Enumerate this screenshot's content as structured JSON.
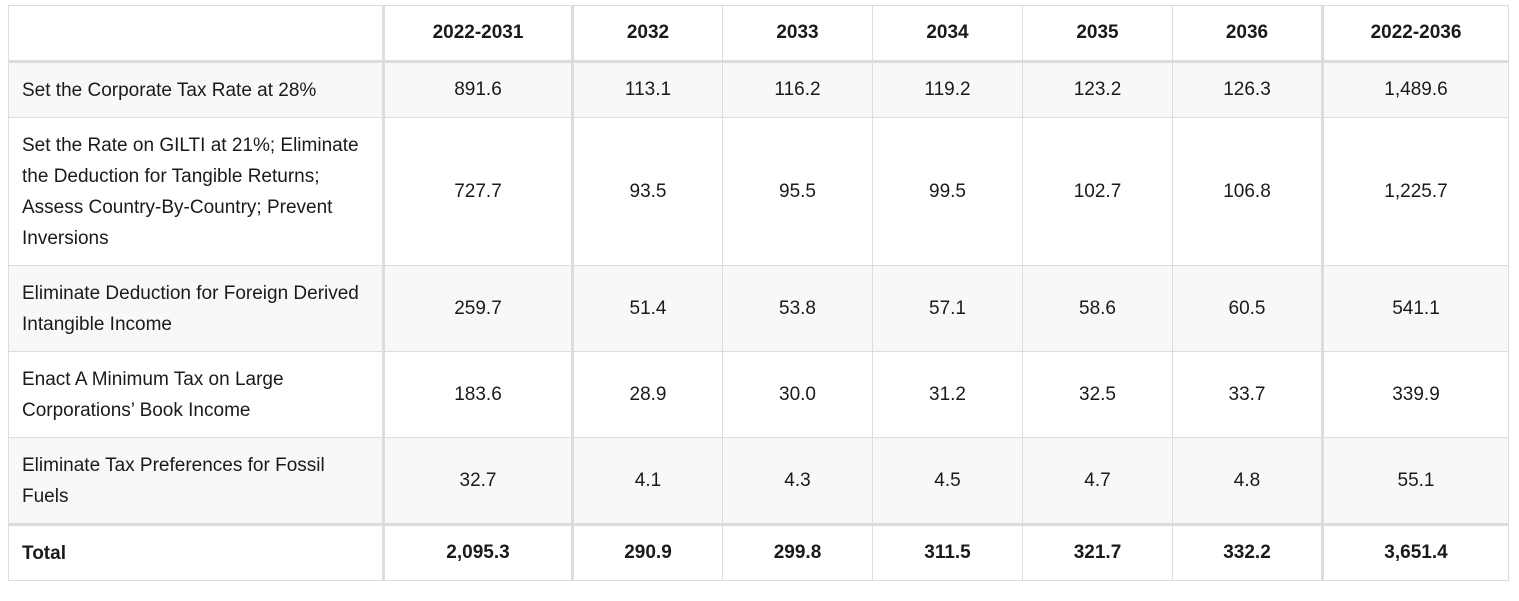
{
  "table": {
    "headers": [
      "",
      "2022-2031",
      "2032",
      "2033",
      "2034",
      "2035",
      "2036",
      "2022-2036"
    ],
    "rows": [
      {
        "label": "Set the Corporate Tax Rate at 28%",
        "values": [
          "891.6",
          "113.1",
          "116.2",
          "119.2",
          "123.2",
          "126.3",
          "1,489.6"
        ]
      },
      {
        "label": "Set the Rate on GILTI at 21%; Eliminate the Deduction for Tangible Returns; Assess Country-By-Country; Prevent Inversions",
        "values": [
          "727.7",
          "93.5",
          "95.5",
          "99.5",
          "102.7",
          "106.8",
          "1,225.7"
        ]
      },
      {
        "label": "Eliminate Deduction for Foreign Derived Intangible Income",
        "values": [
          "259.7",
          "51.4",
          "53.8",
          "57.1",
          "58.6",
          "60.5",
          "541.1"
        ]
      },
      {
        "label": "Enact A Minimum Tax on Large Corporations’ Book Income",
        "values": [
          "183.6",
          "28.9",
          "30.0",
          "31.2",
          "32.5",
          "33.7",
          "339.9"
        ]
      },
      {
        "label": "Eliminate Tax Preferences for Fossil Fuels",
        "values": [
          "32.7",
          "4.1",
          "4.3",
          "4.5",
          "4.7",
          "4.8",
          "55.1"
        ]
      }
    ],
    "total": {
      "label": "Total",
      "values": [
        "2,095.3",
        "290.9",
        "299.8",
        "311.5",
        "321.7",
        "332.2",
        "3,651.4"
      ]
    }
  }
}
